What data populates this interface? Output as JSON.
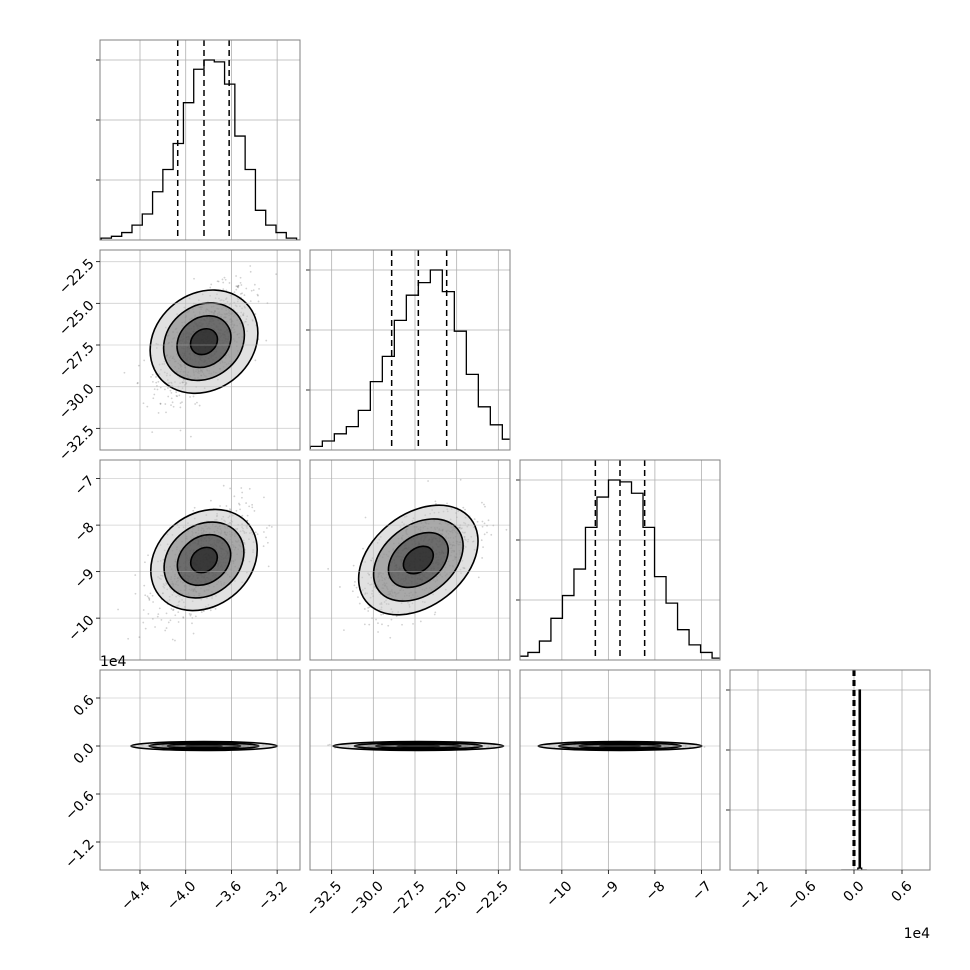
{
  "chart_data": {
    "type": "corner",
    "description_parameters": 4,
    "params": [
      {
        "ticks": [
          -4.4,
          -4.0,
          -3.6,
          -3.2
        ],
        "tick_labels": [
          "−4.4",
          "−4.0",
          "−3.6",
          "−3.2"
        ],
        "range": [
          -4.75,
          -3.0
        ],
        "mean": -3.84,
        "std": 0.2,
        "quantiles": [
          -4.07,
          -3.84,
          -3.62
        ]
      },
      {
        "ticks": [
          -32.5,
          -30.0,
          -27.5,
          -25.0,
          -22.5
        ],
        "tick_labels": [
          "−32.5",
          "−30.0",
          "−27.5",
          "−25.0",
          "−22.5"
        ],
        "range": [
          -33.8,
          -21.8
        ],
        "mean": -27.3,
        "std": 1.6,
        "quantiles": [
          -28.9,
          -27.3,
          -25.6
        ]
      },
      {
        "ticks": [
          -10,
          -9,
          -8,
          -7
        ],
        "tick_labels": [
          "−10",
          "−9",
          "−8",
          "−7"
        ],
        "range": [
          -10.9,
          -6.6
        ],
        "mean": -8.75,
        "std": 0.55,
        "quantiles": [
          -9.28,
          -8.75,
          -8.22
        ]
      },
      {
        "ticks": [
          -1.2,
          -0.6,
          0.0,
          0.6
        ],
        "tick_labels": [
          "−1.2",
          "−0.6",
          "0.0",
          "0.6"
        ],
        "multiplier": "1e4",
        "range": [
          -1.55,
          0.95
        ],
        "mean": 0.0,
        "std": 0.02,
        "quantiles": [
          -0.01,
          0.0,
          0.01
        ]
      }
    ],
    "histograms": [
      [
        1,
        2,
        4,
        8,
        14,
        26,
        38,
        52,
        74,
        92,
        97,
        96,
        84,
        56,
        38,
        16,
        8,
        4,
        1,
        0
      ],
      [
        1,
        2,
        5,
        9,
        13,
        22,
        38,
        52,
        72,
        86,
        93,
        100,
        88,
        66,
        42,
        24,
        14,
        6,
        3,
        1
      ],
      [
        1,
        2,
        4,
        10,
        22,
        34,
        48,
        70,
        86,
        95,
        94,
        88,
        70,
        44,
        30,
        16,
        8,
        4,
        1,
        0
      ],
      [
        0,
        0,
        0,
        0,
        0,
        0,
        0,
        0,
        0,
        0,
        0,
        0,
        0,
        1,
        95,
        1,
        0,
        0,
        0,
        0
      ]
    ],
    "correlations": {
      "0-1": 0.6,
      "0-2": 0.55,
      "1-2": 0.6,
      "0-3": 0.0,
      "1-3": 0.0,
      "2-3": 0.0
    },
    "quantile_levels": [
      0.16,
      0.5,
      0.84
    ],
    "contour_levels_sigma": [
      0.5,
      1.0,
      1.5,
      2.0
    ],
    "grid": true,
    "line_color": "#000000",
    "grid_color": "#b0b0b0",
    "axes_color": "#808080"
  }
}
